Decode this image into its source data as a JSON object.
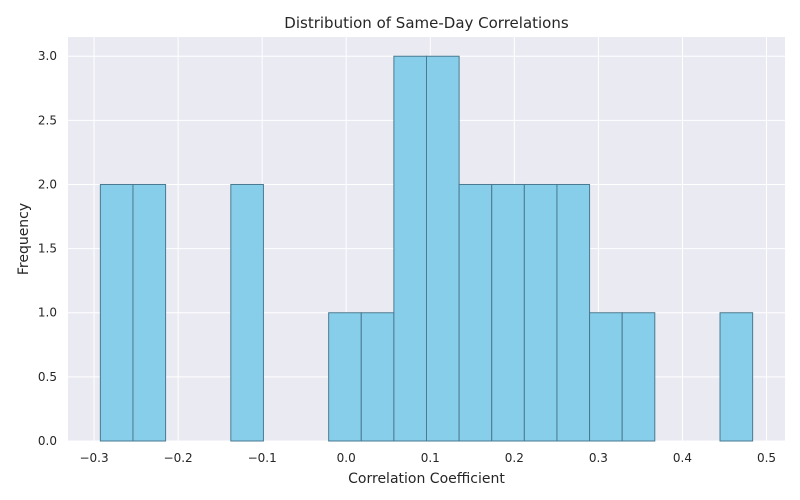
{
  "chart_data": {
    "type": "bar",
    "title": "Distribution of Same-Day Correlations",
    "xlabel": "Correlation Coefficient",
    "ylabel": "Frequency",
    "histogram": true,
    "bin_edges": [
      -0.2925,
      -0.2537,
      -0.2149,
      -0.1761,
      -0.1373,
      -0.0985,
      -0.0597,
      -0.0209,
      0.0179,
      0.0567,
      0.0955,
      0.1343,
      0.1731,
      0.2119,
      0.2507,
      0.2895,
      0.3283,
      0.3671,
      0.4059,
      0.4447,
      0.4835
    ],
    "values": [
      2,
      2,
      0,
      0,
      2,
      0,
      0,
      1,
      1,
      3,
      3,
      2,
      2,
      2,
      2,
      1,
      1,
      0,
      0,
      1
    ],
    "xlim": [
      -0.331,
      0.522
    ],
    "ylim": [
      0,
      3.15
    ],
    "xticks": [
      -0.3,
      -0.2,
      -0.1,
      0.0,
      0.1,
      0.2,
      0.3,
      0.4,
      0.5
    ],
    "xtick_labels": [
      "−0.3",
      "−0.2",
      "−0.1",
      "0.0",
      "0.1",
      "0.2",
      "0.3",
      "0.4",
      "0.5"
    ],
    "yticks": [
      0,
      0.5,
      1,
      1.5,
      2,
      2.5,
      3
    ],
    "ytick_labels": [
      "0.0",
      "0.5",
      "1.0",
      "1.5",
      "2.0",
      "2.5",
      "3.0"
    ],
    "grid": true,
    "bar_color": "#87ceeb",
    "edge_color": "#4a7a90",
    "background_color": "#eaeaf2",
    "grid_color": "#ffffff"
  }
}
